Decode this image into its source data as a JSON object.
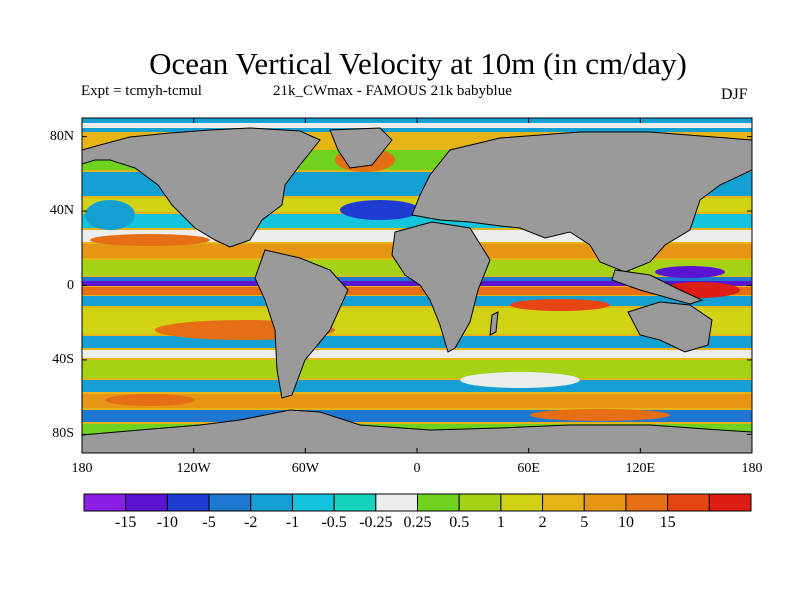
{
  "title": "Ocean Vertical Velocity at 10m (in cm/day)",
  "subtitle_left": "Expt = tcmyh-tcmul",
  "subtitle_center": "21k_CWmax - FAMOUS 21k babyblue",
  "subtitle_right": "DJF",
  "map": {
    "land_color": "#9a9a9a",
    "coastline_color": "#000000",
    "lon_range": [
      -180,
      180
    ],
    "lat_range": [
      -90,
      90
    ]
  },
  "lat_axis": {
    "ticks": [
      {
        "value": 80,
        "label": "80N"
      },
      {
        "value": 40,
        "label": "40N"
      },
      {
        "value": 0,
        "label": "0"
      },
      {
        "value": -40,
        "label": "40S"
      },
      {
        "value": -80,
        "label": "80S"
      }
    ]
  },
  "lon_axis": {
    "ticks": [
      {
        "value": -180,
        "label": "180"
      },
      {
        "value": -120,
        "label": "120W"
      },
      {
        "value": -60,
        "label": "60W"
      },
      {
        "value": 0,
        "label": "0"
      },
      {
        "value": 60,
        "label": "60E"
      },
      {
        "value": 120,
        "label": "120E"
      },
      {
        "value": 180,
        "label": "180"
      }
    ]
  },
  "colorbar": {
    "colors": [
      "#8c1ee6",
      "#5a14d2",
      "#1e3cd2",
      "#1e78d2",
      "#14a0d2",
      "#14c3dc",
      "#14d2be",
      "#ececec",
      "#6ed21e",
      "#a5d214",
      "#d2d214",
      "#e6b414",
      "#e69614",
      "#e66e14",
      "#e64614",
      "#dc1e14"
    ],
    "labels": [
      "-15",
      "-10",
      "-5",
      "-2",
      "-1",
      "-0.5",
      "-0.25",
      "0.25",
      "0.5",
      "1",
      "2",
      "5",
      "10",
      "15"
    ]
  }
}
